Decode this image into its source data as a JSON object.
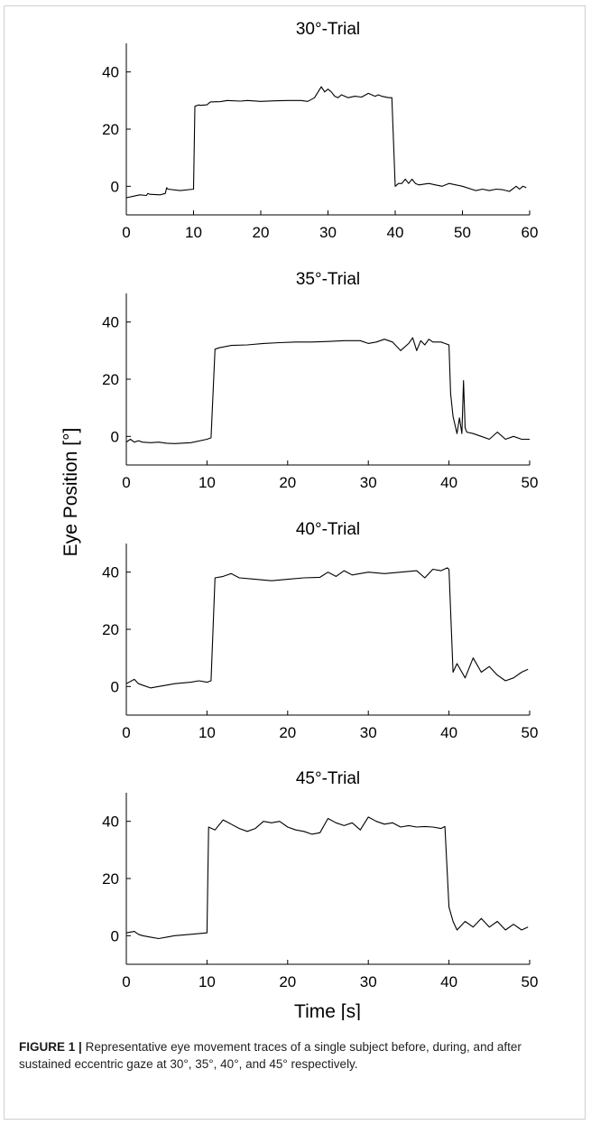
{
  "figure": {
    "ylabel": "Eye Position [°]",
    "xlabel": "Time [s]",
    "caption_label": "FIGURE 1",
    "caption_separator": "|",
    "caption_text": "Representative eye movement traces of a single subject before, during, and after sustained eccentric gaze at 30°, 35°, 40°, and 45° respectively."
  },
  "colors": {
    "line": "#000000",
    "axis": "#000000",
    "border": "#cfcfcf"
  },
  "chart_data": [
    {
      "type": "line",
      "title": "30°-Trial",
      "xlim": [
        0,
        60
      ],
      "ylim": [
        -10,
        50
      ],
      "xticks": [
        0,
        10,
        20,
        30,
        40,
        50,
        60
      ],
      "yticks": [
        0,
        20,
        40
      ],
      "x": [
        0,
        1,
        2,
        3,
        3.2,
        3.5,
        5,
        5.8,
        6,
        6.2,
        8,
        10,
        10.2,
        10.8,
        11,
        12,
        12.5,
        14,
        15,
        17,
        18,
        20,
        22,
        24,
        26,
        27,
        28,
        29,
        29.5,
        30,
        30.5,
        31,
        31.5,
        32,
        33,
        34,
        35,
        36,
        37,
        37.5,
        38,
        39,
        39.5,
        40,
        40.5,
        41,
        41.5,
        42,
        42.5,
        43,
        43.5,
        45,
        46,
        47,
        48,
        50,
        52,
        53,
        54,
        55,
        56,
        57,
        58,
        58.5,
        59,
        59.5
      ],
      "y": [
        -4,
        -3.5,
        -3,
        -3.2,
        -2.5,
        -2.8,
        -3,
        -2.5,
        -0.5,
        -1,
        -1.5,
        -1,
        28,
        28.5,
        28.3,
        28.5,
        29.5,
        29.6,
        30,
        29.8,
        30,
        29.7,
        29.9,
        30,
        30,
        29.7,
        31,
        34.8,
        33,
        34,
        33,
        31.5,
        31,
        32,
        31,
        31.5,
        31.2,
        32.5,
        31.5,
        32,
        31.5,
        31,
        31,
        0,
        1,
        1,
        2.5,
        1,
        2.5,
        1,
        0.5,
        1,
        0.5,
        0,
        1,
        0,
        -1.5,
        -1,
        -1.5,
        -1,
        -1.2,
        -1.8,
        0,
        -1,
        0,
        -0.5
      ]
    },
    {
      "type": "line",
      "title": "35°-Trial",
      "xlim": [
        0,
        50
      ],
      "ylim": [
        -10,
        50
      ],
      "xticks": [
        0,
        10,
        20,
        30,
        40,
        50
      ],
      "yticks": [
        0,
        20,
        40
      ],
      "x": [
        0,
        0.5,
        1,
        1.5,
        2,
        3,
        4,
        5,
        6,
        8,
        10,
        10.5,
        11,
        11.5,
        13,
        15,
        17,
        19,
        21,
        23,
        25,
        27,
        29,
        30,
        31,
        32,
        33,
        34,
        35,
        35.5,
        36,
        36.5,
        37,
        37.5,
        38,
        39,
        39.5,
        40,
        40.2,
        40.5,
        41,
        41.3,
        41.6,
        41.8,
        42,
        42.2,
        43,
        44,
        45,
        46,
        47,
        48,
        49,
        50
      ],
      "y": [
        -2,
        -1,
        -2,
        -1.5,
        -2,
        -2.2,
        -2,
        -2.4,
        -2.5,
        -2.2,
        -1,
        -0.5,
        30.5,
        31,
        31.8,
        32,
        32.5,
        32.8,
        33,
        33,
        33.2,
        33.5,
        33.5,
        32.5,
        33,
        34,
        33,
        30,
        32.5,
        34.5,
        30,
        33.5,
        32,
        34,
        33,
        33,
        32.5,
        32,
        15,
        7,
        1,
        6.5,
        1,
        19.5,
        3,
        1.5,
        1,
        0,
        -1,
        1.5,
        -1,
        0,
        -1,
        -1
      ]
    },
    {
      "type": "line",
      "title": "40°-Trial",
      "xlim": [
        0,
        50
      ],
      "ylim": [
        -10,
        50
      ],
      "xticks": [
        0,
        10,
        20,
        30,
        40,
        50
      ],
      "yticks": [
        0,
        20,
        40
      ],
      "x": [
        0,
        1,
        1.5,
        2,
        3,
        4,
        5,
        6,
        8,
        9,
        10,
        10.5,
        11,
        12,
        13,
        14,
        16,
        18,
        20,
        22,
        24,
        25,
        26,
        27,
        28,
        30,
        32,
        34,
        36,
        37,
        38,
        39,
        39.8,
        40,
        40.5,
        41,
        42,
        43,
        44,
        45,
        46,
        47,
        48,
        49,
        49.8
      ],
      "y": [
        1,
        2.5,
        1,
        0.5,
        -0.5,
        0,
        0.5,
        1,
        1.5,
        2,
        1.5,
        2,
        38,
        38.5,
        39.5,
        38,
        37.5,
        37,
        37.5,
        38,
        38.2,
        40,
        38.5,
        40.5,
        39,
        40,
        39.5,
        40,
        40.5,
        38,
        41,
        40.5,
        41.5,
        41,
        5,
        8,
        3,
        10,
        5,
        7,
        4,
        2,
        3,
        5,
        6
      ]
    },
    {
      "type": "line",
      "title": "45°-Trial",
      "xlim": [
        0,
        50
      ],
      "ylim": [
        -10,
        50
      ],
      "xticks": [
        0,
        10,
        20,
        30,
        40,
        50
      ],
      "yticks": [
        0,
        20,
        40
      ],
      "x": [
        0,
        1,
        1.5,
        2,
        3,
        4,
        5,
        6,
        8,
        10,
        10.2,
        11,
        12,
        13,
        14,
        15,
        16,
        17,
        18,
        19,
        20,
        21,
        22,
        23,
        24,
        25,
        26,
        27,
        28,
        29,
        30,
        31,
        32,
        33,
        34,
        35,
        36,
        37,
        38,
        39,
        39.5,
        40,
        40.5,
        41,
        42,
        43,
        44,
        45,
        46,
        47,
        48,
        49,
        49.8
      ],
      "y": [
        1,
        1.5,
        0.5,
        0,
        -0.5,
        -1,
        -0.5,
        0,
        0.5,
        1,
        38,
        37,
        40.5,
        39,
        37.5,
        36.5,
        37.5,
        40,
        39.5,
        40,
        38,
        37,
        36.5,
        35.5,
        36,
        41,
        39.5,
        38.5,
        39.5,
        37,
        41.5,
        40,
        39,
        39.5,
        38,
        38.5,
        38,
        38.2,
        38,
        37.5,
        38.2,
        10,
        5,
        2,
        5,
        3,
        6,
        3,
        5,
        2,
        4,
        2,
        3
      ]
    }
  ]
}
